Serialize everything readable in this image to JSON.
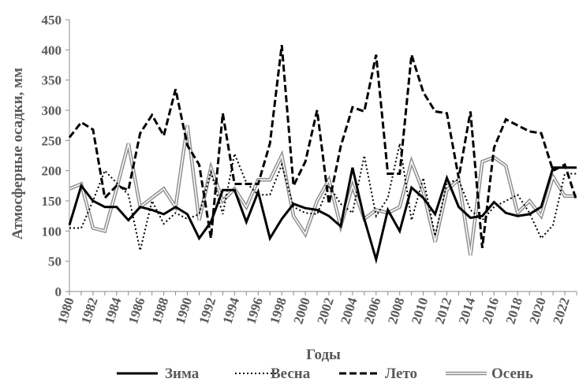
{
  "chart_data": {
    "type": "line",
    "title": "",
    "xlabel": "Годы",
    "ylabel": "Атмосферные осадки, мм",
    "ylim": [
      0,
      450
    ],
    "yticks": [
      0,
      50,
      100,
      150,
      200,
      250,
      300,
      350,
      400,
      450
    ],
    "xticks": [
      "1980",
      "1982",
      "1984",
      "1986",
      "1988",
      "1990",
      "1992",
      "1994",
      "1996",
      "1998",
      "2000",
      "2002",
      "2004",
      "2006",
      "2008",
      "2010",
      "2012",
      "2014",
      "2016",
      "2018",
      "2020",
      "2022"
    ],
    "grid": false,
    "legend_position": "bottom",
    "x": [
      1980,
      1981,
      1982,
      1983,
      1984,
      1985,
      1986,
      1987,
      1988,
      1989,
      1990,
      1991,
      1992,
      1993,
      1994,
      1995,
      1996,
      1997,
      1998,
      1999,
      2000,
      2001,
      2002,
      2003,
      2004,
      2005,
      2006,
      2007,
      2008,
      2009,
      2010,
      2011,
      2012,
      2013,
      2014,
      2015,
      2016,
      2017,
      2018,
      2019,
      2020,
      2021,
      2022,
      2023
    ],
    "series": [
      {
        "name": "Зима",
        "style": "solid-black",
        "values": [
          110,
          175,
          150,
          140,
          140,
          118,
          140,
          135,
          128,
          140,
          128,
          88,
          115,
          168,
          168,
          115,
          165,
          88,
          120,
          145,
          138,
          135,
          125,
          108,
          205,
          120,
          53,
          135,
          100,
          172,
          155,
          128,
          188,
          140,
          122,
          125,
          148,
          130,
          125,
          128,
          140,
          205,
          205,
          205
        ]
      },
      {
        "name": "Весна",
        "style": "dotted-black",
        "values": [
          105,
          105,
          150,
          200,
          180,
          160,
          68,
          150,
          112,
          130,
          120,
          128,
          198,
          128,
          228,
          180,
          160,
          160,
          210,
          140,
          130,
          128,
          175,
          145,
          130,
          225,
          125,
          155,
          245,
          118,
          188,
          92,
          180,
          185,
          135,
          118,
          140,
          150,
          160,
          130,
          88,
          110,
          195,
          195
        ]
      },
      {
        "name": "Лето",
        "style": "dashed-black",
        "values": [
          255,
          280,
          268,
          155,
          175,
          168,
          262,
          292,
          258,
          335,
          242,
          210,
          88,
          295,
          178,
          178,
          178,
          245,
          408,
          175,
          215,
          300,
          145,
          240,
          305,
          298,
          392,
          195,
          195,
          392,
          330,
          298,
          295,
          188,
          298,
          72,
          238,
          285,
          275,
          265,
          262,
          200,
          210,
          150
        ]
      },
      {
        "name": "Осень",
        "style": "double-gray",
        "values": [
          170,
          178,
          105,
          100,
          170,
          245,
          140,
          155,
          170,
          140,
          275,
          118,
          205,
          150,
          170,
          140,
          185,
          185,
          225,
          125,
          95,
          150,
          185,
          108,
          175,
          120,
          135,
          130,
          140,
          215,
          165,
          82,
          168,
          185,
          60,
          215,
          222,
          208,
          130,
          150,
          125,
          190,
          158,
          158
        ]
      }
    ]
  }
}
